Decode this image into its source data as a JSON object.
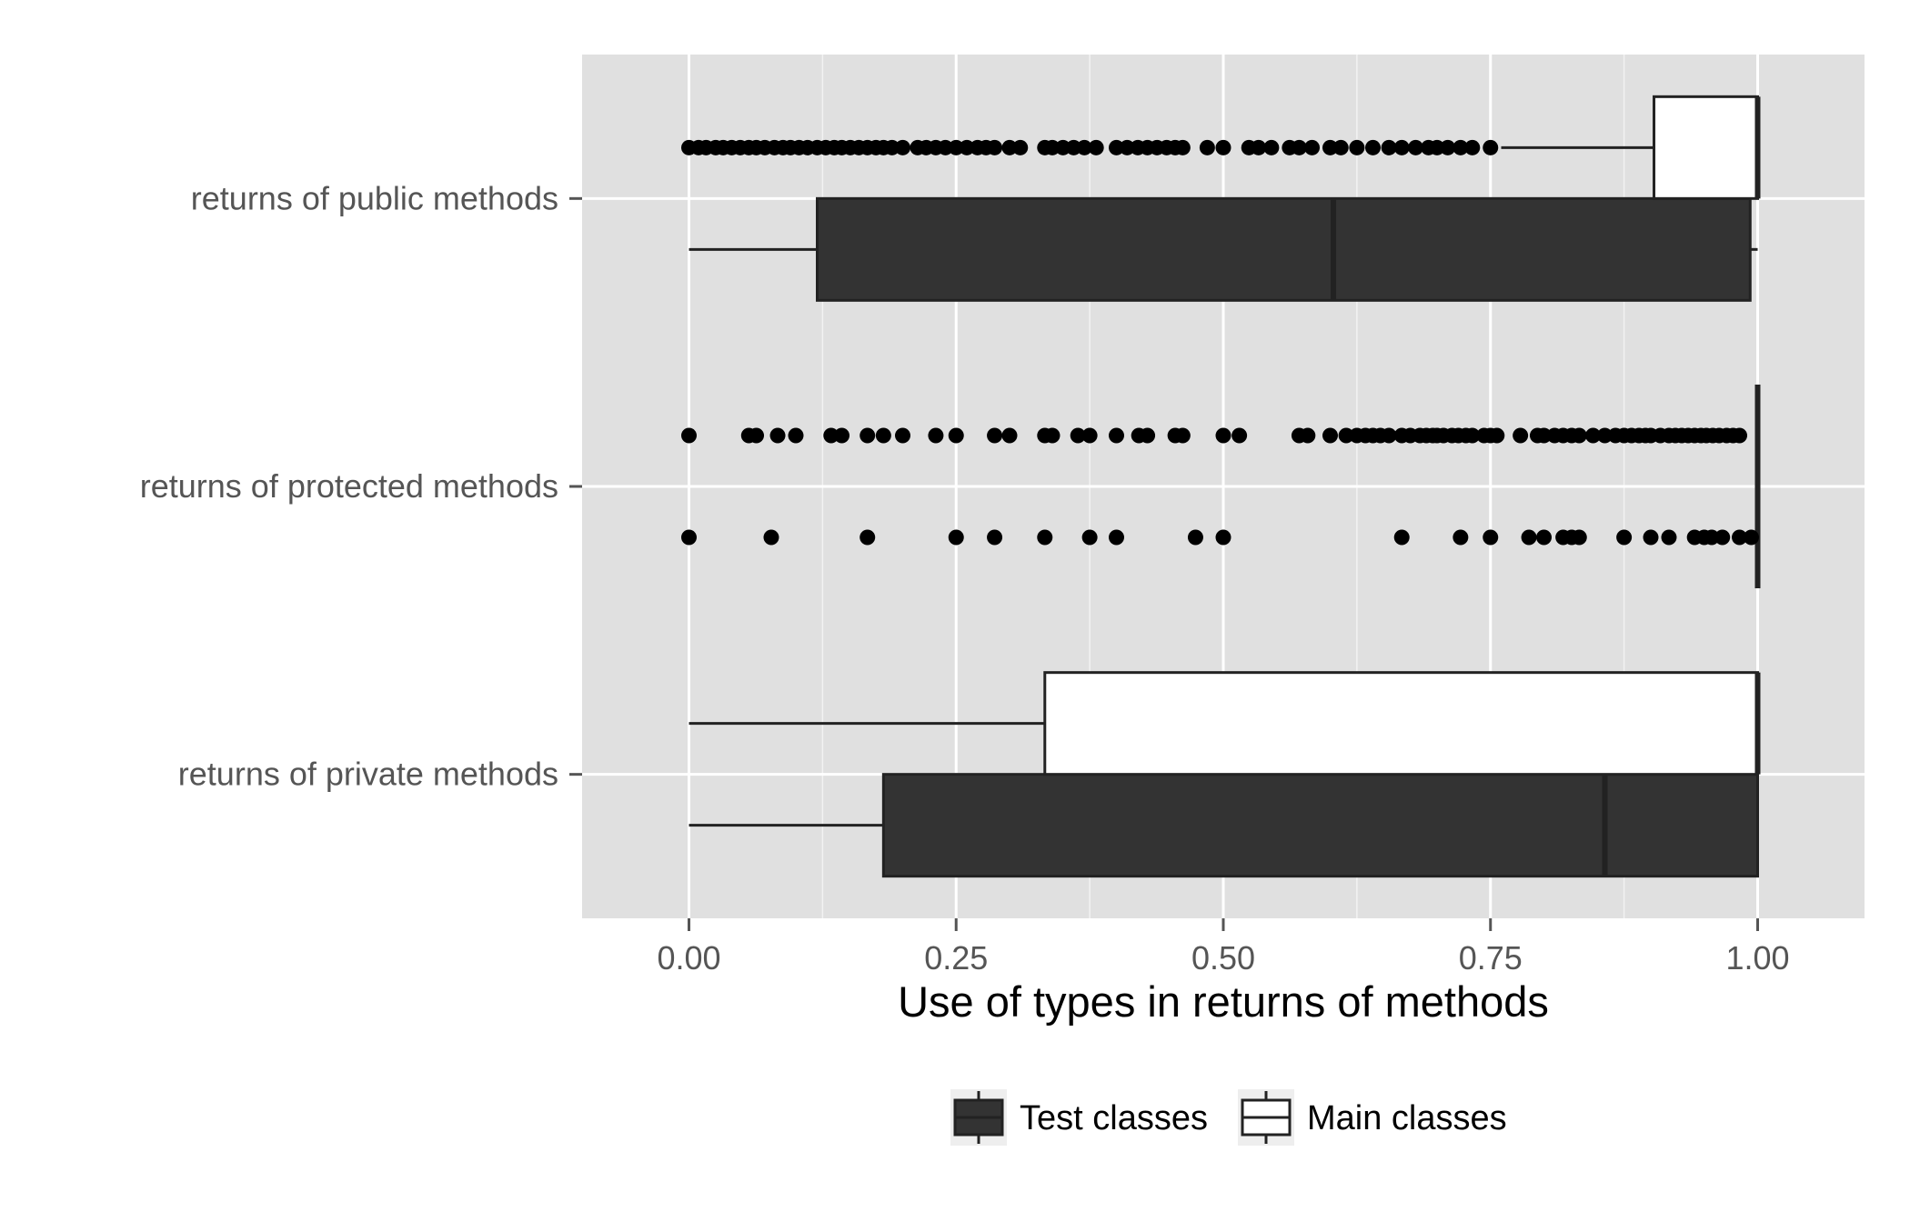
{
  "chart_data": {
    "type": "boxplot",
    "orientation": "horizontal",
    "title": "",
    "xlabel": "Use of types in returns of methods",
    "ylabel": "",
    "xlim": [
      -0.1,
      1.1
    ],
    "xticks": [
      0,
      0.25,
      0.5,
      0.75,
      1
    ],
    "xtick_labels": [
      "0.00",
      "0.25",
      "0.50",
      "0.75",
      "1.00"
    ],
    "categories": [
      "returns of public methods",
      "returns of protected methods",
      "returns of private methods"
    ],
    "grid": true,
    "legend_position": "bottom",
    "series": [
      {
        "name": "Test classes",
        "fill": "#333333",
        "stroke": "#222222",
        "boxes": [
          {
            "category": "returns of public methods",
            "min": 0.0,
            "q1": 0.12,
            "median": 0.603,
            "q3": 0.993,
            "max": 1.0,
            "outliers": []
          },
          {
            "category": "returns of protected methods",
            "min": 1.0,
            "q1": 1.0,
            "median": 1.0,
            "q3": 1.0,
            "max": 1.0,
            "outliers": [
              0.0,
              0.077,
              0.167,
              0.25,
              0.286,
              0.333,
              0.375,
              0.4,
              0.474,
              0.5,
              0.667,
              0.722,
              0.75,
              0.786,
              0.8,
              0.818,
              0.826,
              0.833,
              0.875,
              0.9,
              0.917,
              0.941,
              0.95,
              0.957,
              0.967,
              0.983,
              0.994
            ]
          },
          {
            "category": "returns of private methods",
            "min": 0.0,
            "q1": 0.182,
            "median": 0.857,
            "q3": 1.0,
            "max": 1.0,
            "outliers": []
          }
        ]
      },
      {
        "name": "Main classes",
        "fill": "#ffffff",
        "stroke": "#222222",
        "boxes": [
          {
            "category": "returns of public methods",
            "min": 0.76,
            "q1": 0.903,
            "median": 1.0,
            "q3": 1.0,
            "max": 1.0,
            "outliers": [
              0.0,
              0.009,
              0.016,
              0.025,
              0.032,
              0.04,
              0.048,
              0.056,
              0.063,
              0.071,
              0.08,
              0.088,
              0.095,
              0.103,
              0.111,
              0.12,
              0.128,
              0.136,
              0.143,
              0.151,
              0.159,
              0.167,
              0.175,
              0.182,
              0.19,
              0.2,
              0.214,
              0.222,
              0.231,
              0.24,
              0.25,
              0.26,
              0.27,
              0.278,
              0.286,
              0.3,
              0.31,
              0.333,
              0.34,
              0.35,
              0.36,
              0.37,
              0.381,
              0.4,
              0.41,
              0.42,
              0.429,
              0.438,
              0.447,
              0.455,
              0.462,
              0.485,
              0.5,
              0.524,
              0.533,
              0.545,
              0.562,
              0.571,
              0.583,
              0.6,
              0.61,
              0.625,
              0.64,
              0.655,
              0.667,
              0.68,
              0.692,
              0.7,
              0.71,
              0.722,
              0.733,
              0.75
            ]
          },
          {
            "category": "returns of protected methods",
            "min": 1.0,
            "q1": 1.0,
            "median": 1.0,
            "q3": 1.0,
            "max": 1.0,
            "outliers": [
              0.0,
              0.056,
              0.063,
              0.083,
              0.1,
              0.133,
              0.143,
              0.167,
              0.182,
              0.2,
              0.231,
              0.25,
              0.286,
              0.3,
              0.333,
              0.34,
              0.364,
              0.375,
              0.4,
              0.421,
              0.429,
              0.455,
              0.462,
              0.5,
              0.515,
              0.571,
              0.579,
              0.6,
              0.615,
              0.625,
              0.633,
              0.64,
              0.647,
              0.655,
              0.667,
              0.675,
              0.684,
              0.69,
              0.696,
              0.7,
              0.706,
              0.714,
              0.72,
              0.727,
              0.733,
              0.744,
              0.75,
              0.756,
              0.778,
              0.794,
              0.8,
              0.81,
              0.818,
              0.826,
              0.833,
              0.846,
              0.857,
              0.867,
              0.875,
              0.882,
              0.889,
              0.895,
              0.9,
              0.909,
              0.917,
              0.923,
              0.929,
              0.935,
              0.941,
              0.947,
              0.952,
              0.958,
              0.964,
              0.971,
              0.977,
              0.983
            ]
          },
          {
            "category": "returns of private methods",
            "min": 0.0,
            "q1": 0.333,
            "median": 1.0,
            "q3": 1.0,
            "max": 1.0,
            "outliers": []
          }
        ]
      }
    ]
  }
}
